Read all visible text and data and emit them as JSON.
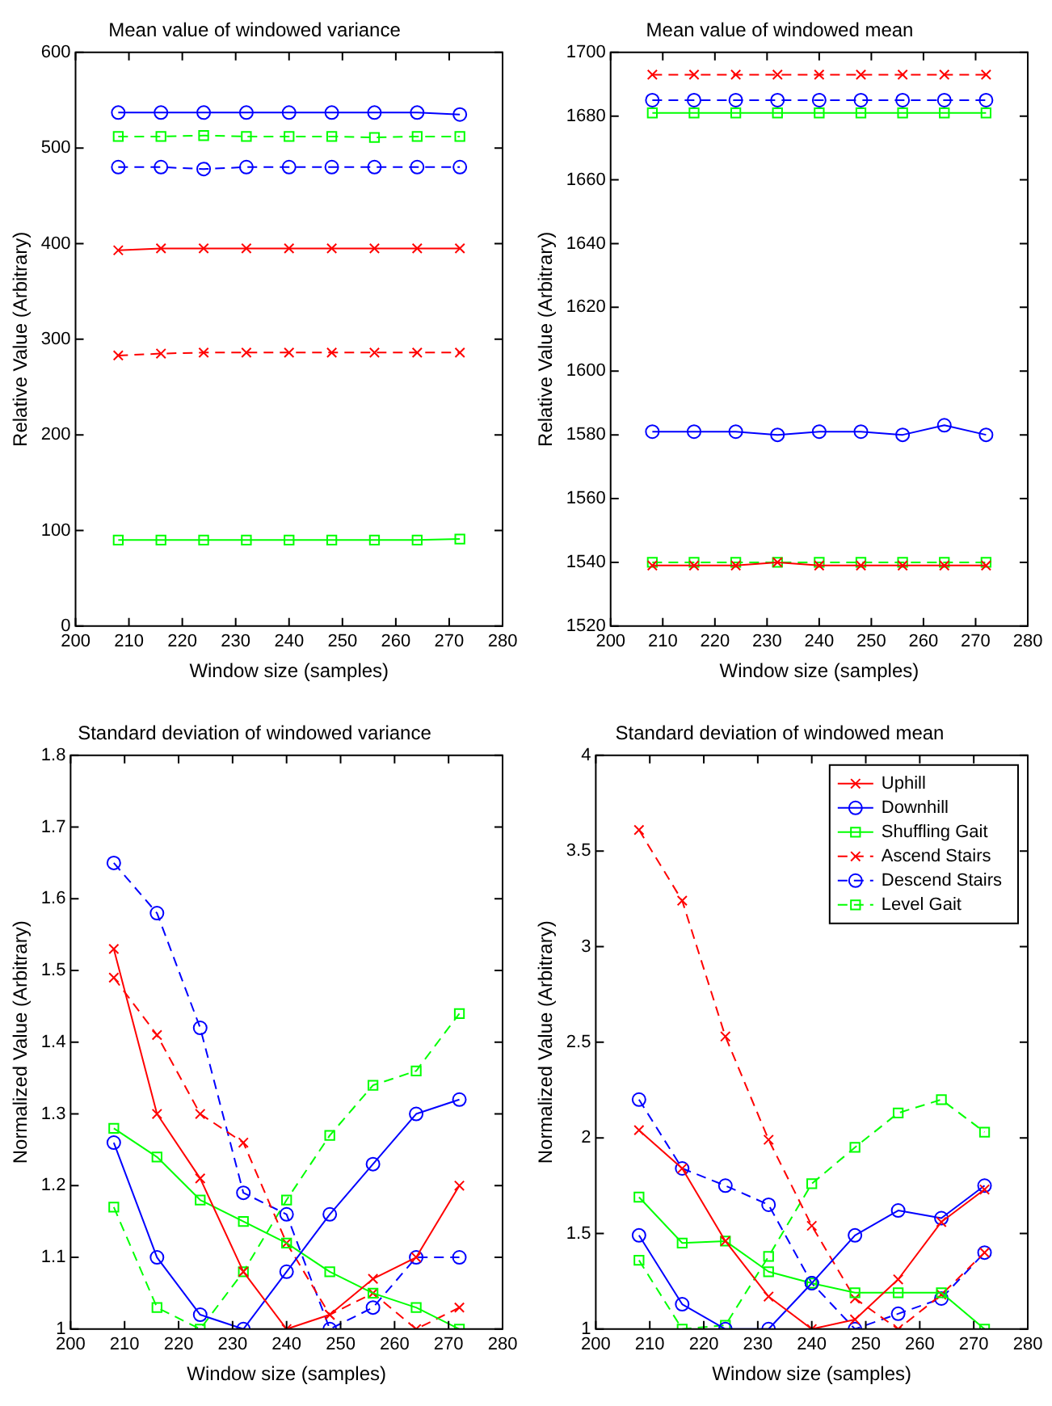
{
  "chart_data": [
    {
      "type": "line",
      "title": "Mean value of windowed mean",
      "xlabel": "Window size (samples)",
      "ylabel": "Relative Value (Arbitrary)",
      "x": [
        208,
        216,
        224,
        232,
        240,
        248,
        256,
        264,
        272
      ],
      "xlim": [
        200,
        280
      ],
      "xticks": [
        200,
        210,
        220,
        230,
        240,
        250,
        260,
        270,
        280
      ],
      "ylim": [
        1520,
        1700
      ],
      "yticks": [
        1520,
        1540,
        1560,
        1580,
        1600,
        1620,
        1640,
        1660,
        1680,
        1700
      ],
      "series": [
        {
          "color": "#ff0000",
          "marker": "cross",
          "line_style": "solid",
          "values": [
            1539,
            1539,
            1539,
            1540,
            1539,
            1539,
            1539,
            1539,
            1539
          ]
        },
        {
          "color": "#0000ff",
          "marker": "circle",
          "line_style": "solid",
          "values": [
            1581,
            1581,
            1581,
            1580,
            1581,
            1581,
            1580,
            1583,
            1580
          ]
        },
        {
          "color": "#00ff00",
          "marker": "square",
          "line_style": "solid",
          "values": [
            1681,
            1681,
            1681,
            1681,
            1681,
            1681,
            1681,
            1681,
            1681
          ]
        },
        {
          "color": "#ff0000",
          "marker": "cross",
          "line_style": "dashed",
          "values": [
            1693,
            1693,
            1693,
            1693,
            1693,
            1693,
            1693,
            1693,
            1693
          ]
        },
        {
          "color": "#0000ff",
          "marker": "circle",
          "line_style": "dashed",
          "values": [
            1685,
            1685,
            1685,
            1685,
            1685,
            1685,
            1685,
            1685,
            1685
          ]
        },
        {
          "color": "#00ff00",
          "marker": "square",
          "line_style": "dashed",
          "values": [
            1540,
            1540,
            1540,
            1540,
            1540,
            1540,
            1540,
            1540,
            1540
          ]
        }
      ]
    },
    {
      "type": "line",
      "title": "Standard deviation of windowed mean",
      "xlabel": "Window size (samples)",
      "ylabel": "Normalized Value (Arbitrary)",
      "x": [
        208,
        216,
        224,
        232,
        240,
        248,
        256,
        264,
        272
      ],
      "xlim": [
        200,
        280
      ],
      "xticks": [
        200,
        210,
        220,
        230,
        240,
        250,
        260,
        270,
        280
      ],
      "ylim": [
        1,
        4
      ],
      "yticks": [
        1,
        1.5,
        2,
        2.5,
        3,
        3.5,
        4
      ],
      "legend": "top right",
      "series": [
        {
          "name": "Uphill",
          "color": "#ff0000",
          "marker": "cross",
          "line_style": "solid",
          "values": [
            2.04,
            1.84,
            1.46,
            1.17,
            1.0,
            1.05,
            1.26,
            1.56,
            1.73
          ]
        },
        {
          "name": "Downhill",
          "color": "#0000ff",
          "marker": "circle",
          "line_style": "solid",
          "values": [
            1.49,
            1.13,
            1.0,
            1.0,
            1.24,
            1.49,
            1.62,
            1.58,
            1.75
          ]
        },
        {
          "name": "Shuffling Gait",
          "color": "#00ff00",
          "marker": "square",
          "line_style": "solid",
          "values": [
            1.69,
            1.45,
            1.46,
            1.3,
            1.24,
            1.19,
            1.19,
            1.19,
            1.0
          ]
        },
        {
          "name": "Ascend Stairs",
          "color": "#ff0000",
          "marker": "cross",
          "line_style": "dashed",
          "values": [
            3.61,
            3.24,
            2.53,
            1.99,
            1.54,
            1.16,
            1.0,
            1.18,
            1.4
          ]
        },
        {
          "name": "Descend Stairs",
          "color": "#0000ff",
          "marker": "circle",
          "line_style": "dashed",
          "values": [
            2.2,
            1.84,
            1.75,
            1.65,
            1.24,
            1.0,
            1.08,
            1.16,
            1.4
          ]
        },
        {
          "name": "Level Gait",
          "color": "#00ff00",
          "marker": "square",
          "line_style": "dashed",
          "values": [
            1.36,
            1.0,
            1.02,
            1.38,
            1.76,
            1.95,
            2.13,
            2.2,
            2.03
          ]
        }
      ]
    },
    {
      "type": "line",
      "title": "Mean value of windowed variance",
      "xlabel": "Window size (samples)",
      "ylabel": "Relative Value (Arbitrary)",
      "x": [
        208,
        216,
        224,
        232,
        240,
        248,
        256,
        264,
        272
      ],
      "xlim": [
        200,
        280
      ],
      "xticks": [
        200,
        210,
        220,
        230,
        240,
        250,
        260,
        270,
        280
      ],
      "ylim": [
        0,
        600
      ],
      "yticks": [
        0,
        100,
        200,
        300,
        400,
        500,
        600
      ],
      "series": [
        {
          "color": "#ff0000",
          "marker": "cross",
          "line_style": "solid",
          "values": [
            393,
            395,
            395,
            395,
            395,
            395,
            395,
            395,
            395
          ]
        },
        {
          "color": "#0000ff",
          "marker": "circle",
          "line_style": "solid",
          "values": [
            537,
            537,
            537,
            537,
            537,
            537,
            537,
            537,
            535
          ]
        },
        {
          "color": "#00ff00",
          "marker": "square",
          "line_style": "solid",
          "values": [
            90,
            90,
            90,
            90,
            90,
            90,
            90,
            90,
            91
          ]
        },
        {
          "color": "#ff0000",
          "marker": "cross",
          "line_style": "dashed",
          "values": [
            283,
            285,
            286,
            286,
            286,
            286,
            286,
            286,
            286
          ]
        },
        {
          "color": "#0000ff",
          "marker": "circle",
          "line_style": "dashed",
          "values": [
            480,
            480,
            478,
            480,
            480,
            480,
            480,
            480,
            480
          ]
        },
        {
          "color": "#00ff00",
          "marker": "square",
          "line_style": "dashed",
          "values": [
            512,
            512,
            513,
            512,
            512,
            512,
            511,
            512,
            512
          ]
        }
      ]
    },
    {
      "type": "line",
      "title": "Standard deviation of windowed variance",
      "xlabel": "Window size (samples)",
      "ylabel": "Normalized Value (Arbitrary)",
      "x": [
        208,
        216,
        224,
        232,
        240,
        248,
        256,
        264,
        272
      ],
      "xlim": [
        200,
        280
      ],
      "xticks": [
        200,
        210,
        220,
        230,
        240,
        250,
        260,
        270,
        280
      ],
      "ylim": [
        1,
        1.8
      ],
      "yticks": [
        1,
        1.1,
        1.2,
        1.3,
        1.4,
        1.5,
        1.6,
        1.7,
        1.8
      ],
      "series": [
        {
          "color": "#ff0000",
          "marker": "cross",
          "line_style": "solid",
          "values": [
            1.53,
            1.3,
            1.21,
            1.08,
            1.0,
            1.02,
            1.07,
            1.1,
            1.2
          ]
        },
        {
          "color": "#0000ff",
          "marker": "circle",
          "line_style": "solid",
          "values": [
            1.26,
            1.1,
            1.02,
            1.0,
            1.08,
            1.16,
            1.23,
            1.3,
            1.32
          ]
        },
        {
          "color": "#00ff00",
          "marker": "square",
          "line_style": "solid",
          "values": [
            1.28,
            1.24,
            1.18,
            1.15,
            1.12,
            1.08,
            1.05,
            1.03,
            1.0
          ]
        },
        {
          "color": "#ff0000",
          "marker": "cross",
          "line_style": "dashed",
          "values": [
            1.49,
            1.41,
            1.3,
            1.26,
            1.12,
            1.02,
            1.05,
            1.0,
            1.03
          ]
        },
        {
          "color": "#0000ff",
          "marker": "circle",
          "line_style": "dashed",
          "values": [
            1.65,
            1.58,
            1.42,
            1.19,
            1.16,
            1.0,
            1.03,
            1.1,
            1.1
          ]
        },
        {
          "color": "#00ff00",
          "marker": "square",
          "line_style": "dashed",
          "values": [
            1.17,
            1.03,
            1.0,
            1.08,
            1.18,
            1.27,
            1.34,
            1.36,
            1.44
          ]
        }
      ]
    }
  ]
}
